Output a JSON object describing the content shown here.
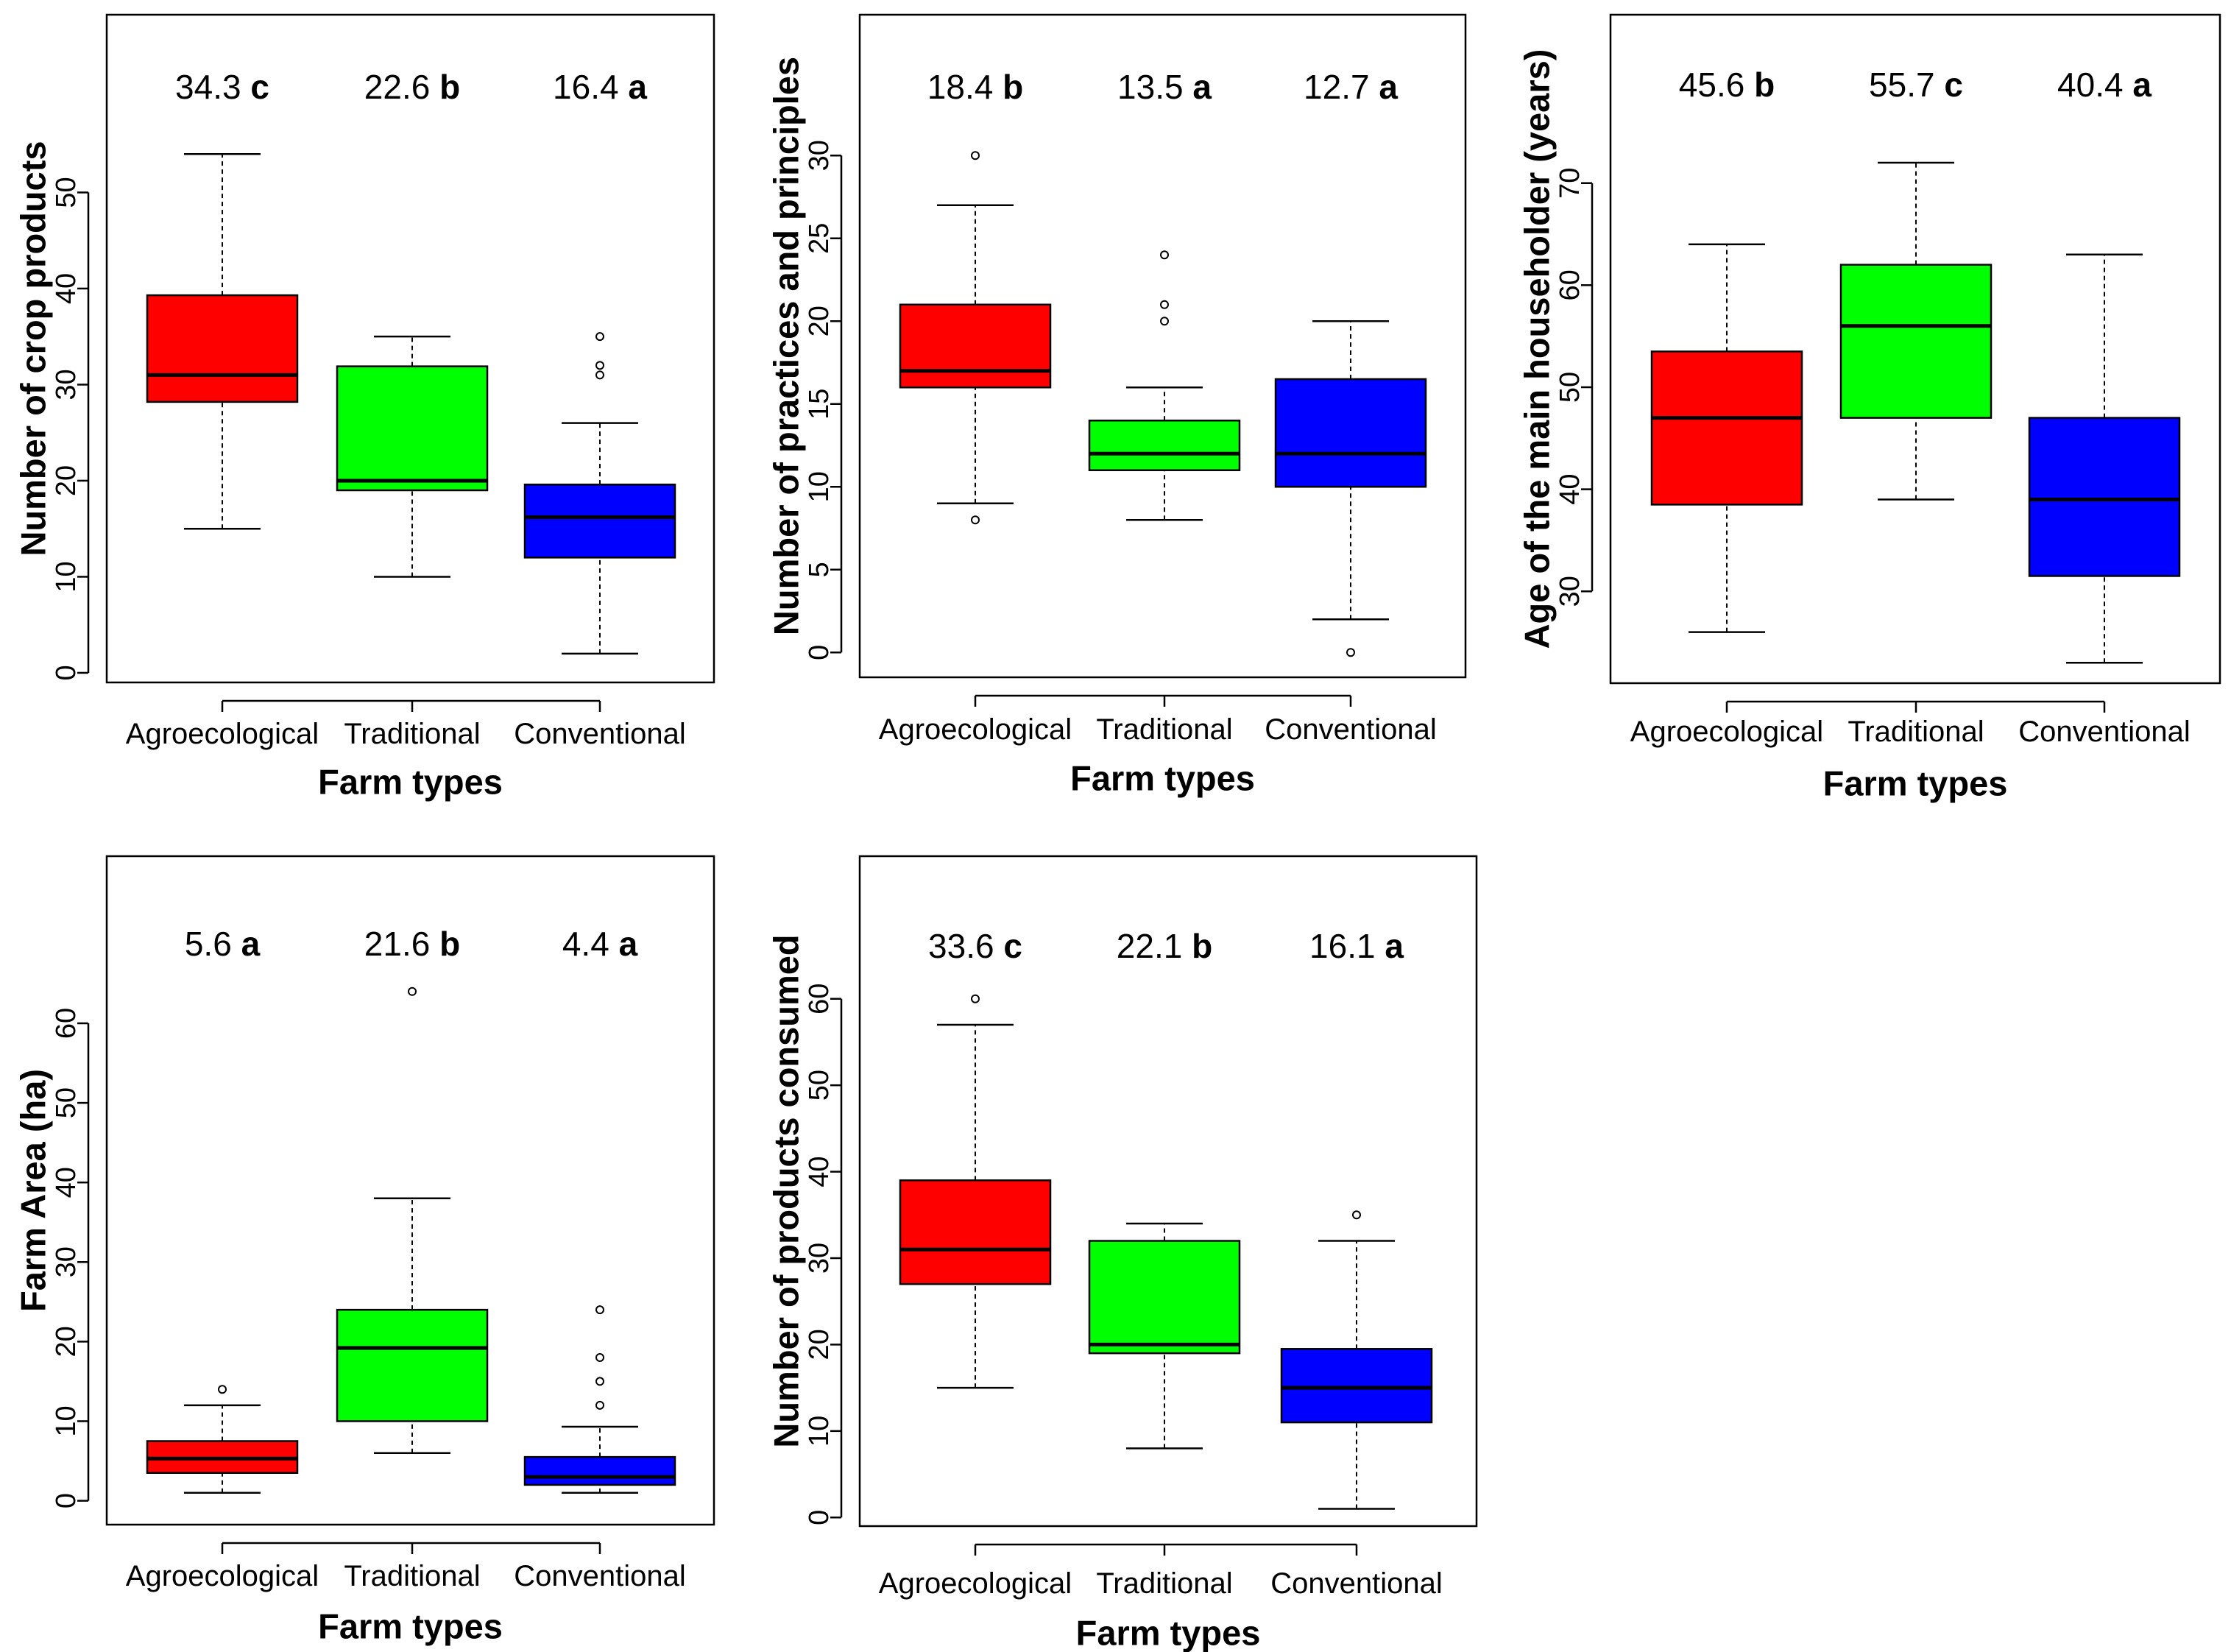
{
  "colors": {
    "Agroecological": "#ff0000",
    "Traditional": "#00ff00",
    "Conventional": "#0000ff"
  },
  "chart_data": [
    {
      "type": "box",
      "ylabel": "Number of crop products",
      "xlabel": "Farm types",
      "categories": [
        "Agroecological",
        "Traditional",
        "Conventional"
      ],
      "yticks": [
        0,
        10,
        20,
        30,
        40,
        50
      ],
      "ylim": [
        -1,
        68.5
      ],
      "annotations": [
        {
          "value": "34.3",
          "letter": "c"
        },
        {
          "value": "22.6",
          "letter": "b"
        },
        {
          "value": "16.4",
          "letter": "a"
        }
      ],
      "boxes": [
        {
          "min": 15,
          "q1": 28.2,
          "median": 31,
          "q3": 39.3,
          "max": 54,
          "outliers": []
        },
        {
          "min": 10,
          "q1": 19,
          "median": 20,
          "q3": 31.9,
          "max": 35,
          "outliers": []
        },
        {
          "min": 2,
          "q1": 12,
          "median": 16.2,
          "q3": 19.6,
          "max": 26,
          "outliers": [
            31,
            32,
            35
          ]
        }
      ]
    },
    {
      "type": "box",
      "ylabel": "Number of practices and principles",
      "xlabel": "Farm types",
      "categories": [
        "Agroecological",
        "Traditional",
        "Conventional"
      ],
      "yticks": [
        0,
        5,
        10,
        15,
        20,
        25,
        30
      ],
      "ylim": [
        -1.5,
        38.5
      ],
      "annotations": [
        {
          "value": "18.4",
          "letter": "b"
        },
        {
          "value": "13.5",
          "letter": "a"
        },
        {
          "value": "12.7",
          "letter": "a"
        }
      ],
      "boxes": [
        {
          "min": 9,
          "q1": 16,
          "median": 17,
          "q3": 21,
          "max": 27,
          "outliers": [
            8,
            30
          ]
        },
        {
          "min": 8,
          "q1": 11,
          "median": 12,
          "q3": 14,
          "max": 16,
          "outliers": [
            20,
            21,
            24
          ]
        },
        {
          "min": 2,
          "q1": 10,
          "median": 12,
          "q3": 16.5,
          "max": 20,
          "outliers": [
            0
          ]
        }
      ]
    },
    {
      "type": "box",
      "ylabel": "Age of the main householder (years)",
      "xlabel": "Farm types",
      "categories": [
        "Agroecological",
        "Traditional",
        "Conventional"
      ],
      "yticks": [
        30,
        40,
        50,
        60,
        70
      ],
      "ylim": [
        21,
        86.5
      ],
      "annotations": [
        {
          "value": "45.6",
          "letter": "b"
        },
        {
          "value": "55.7",
          "letter": "c"
        },
        {
          "value": "40.4",
          "letter": "a"
        }
      ],
      "boxes": [
        {
          "min": 26,
          "q1": 38.5,
          "median": 47,
          "q3": 53.5,
          "max": 64,
          "outliers": []
        },
        {
          "min": 39,
          "q1": 47,
          "median": 56,
          "q3": 62,
          "max": 72,
          "outliers": []
        },
        {
          "min": 23,
          "q1": 31.5,
          "median": 39,
          "q3": 47,
          "max": 63,
          "outliers": []
        }
      ]
    },
    {
      "type": "box",
      "ylabel": "Farm Area (ha)",
      "xlabel": "Farm types",
      "categories": [
        "Agroecological",
        "Traditional",
        "Conventional"
      ],
      "yticks": [
        0,
        10,
        20,
        30,
        40,
        50,
        60
      ],
      "ylim": [
        -3,
        81
      ],
      "annotations": [
        {
          "value": "5.6",
          "letter": "a"
        },
        {
          "value": "21.6",
          "letter": "b"
        },
        {
          "value": "4.4",
          "letter": "a"
        }
      ],
      "boxes": [
        {
          "min": 1,
          "q1": 3.5,
          "median": 5.3,
          "q3": 7.5,
          "max": 12,
          "outliers": [
            14
          ]
        },
        {
          "min": 6,
          "q1": 10,
          "median": 19.2,
          "q3": 24,
          "max": 38,
          "outliers": [
            64
          ]
        },
        {
          "min": 1,
          "q1": 2,
          "median": 3,
          "q3": 5.5,
          "max": 9.3,
          "outliers": [
            12,
            15,
            18,
            24
          ]
        }
      ]
    },
    {
      "type": "box",
      "ylabel": "Number of products consumed",
      "xlabel": "Farm types",
      "categories": [
        "Agroecological",
        "Traditional",
        "Conventional"
      ],
      "yticks": [
        0,
        10,
        20,
        30,
        40,
        50,
        60
      ],
      "ylim": [
        -1,
        76.5
      ],
      "annotations": [
        {
          "value": "33.6",
          "letter": "c"
        },
        {
          "value": "22.1",
          "letter": "b"
        },
        {
          "value": "16.1",
          "letter": "a"
        }
      ],
      "boxes": [
        {
          "min": 15,
          "q1": 27,
          "median": 31,
          "q3": 39,
          "max": 57,
          "outliers": [
            60
          ]
        },
        {
          "min": 8,
          "q1": 19,
          "median": 20,
          "q3": 32,
          "max": 34,
          "outliers": []
        },
        {
          "min": 1,
          "q1": 11,
          "median": 15,
          "q3": 19.5,
          "max": 32,
          "outliers": [
            35
          ]
        }
      ]
    }
  ]
}
